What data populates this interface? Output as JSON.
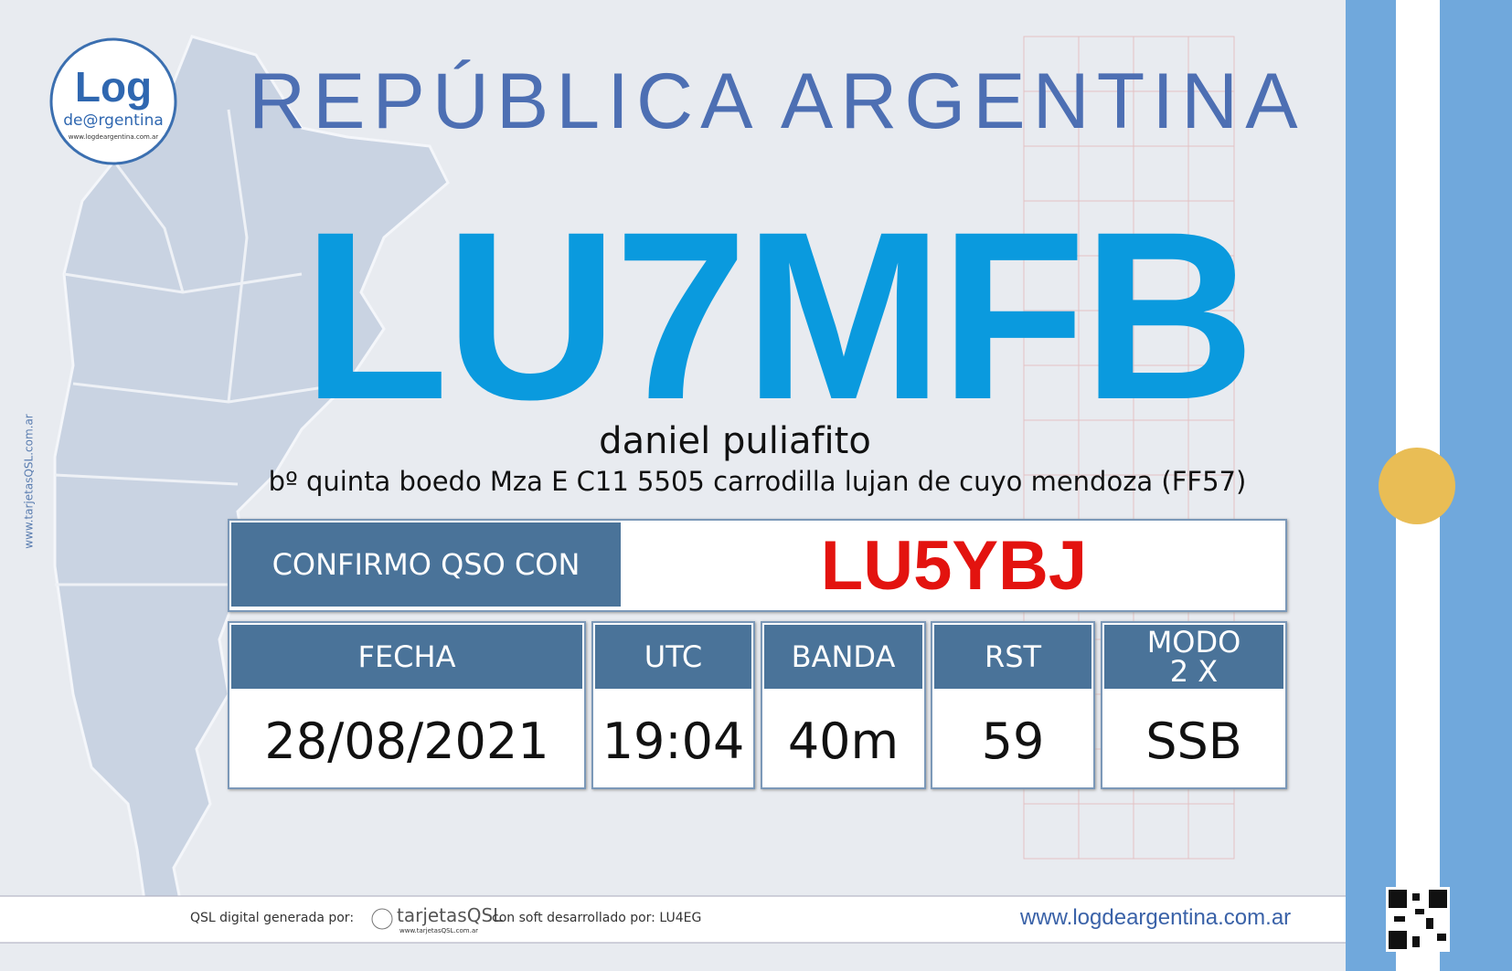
{
  "logo": {
    "title": "Log",
    "subtitle": "de@rgentina",
    "url": "www.logdeargentina.com.ar"
  },
  "side_url": "www.tarjetasQSL.com.ar",
  "header": {
    "title": "REPÚBLICA  ARGENTINA",
    "callsign": "LU7MFB",
    "name": "daniel puliafito",
    "address": "bº quinta boedo Mza E C11 5505 carrodilla lujan de cuyo  mendoza  (FF57)"
  },
  "confirm": {
    "label": "CONFIRMO QSO CON",
    "callsign": "LU5YBJ"
  },
  "table": {
    "headers": [
      "FECHA",
      "UTC",
      "BANDA",
      "RST",
      "MODO"
    ],
    "mode_note": "2 X",
    "values": [
      "28/08/2021",
      "19:04",
      "40m",
      "59",
      "SSB"
    ]
  },
  "footer": {
    "generated_by": "QSL digital generada por:",
    "brand": "tarjetasQSL",
    "brand_url": "www.tarjetasQSL.com.ar",
    "software": "con soft desarrollado por: LU4EG",
    "url": "www.logdeargentina.com.ar"
  }
}
